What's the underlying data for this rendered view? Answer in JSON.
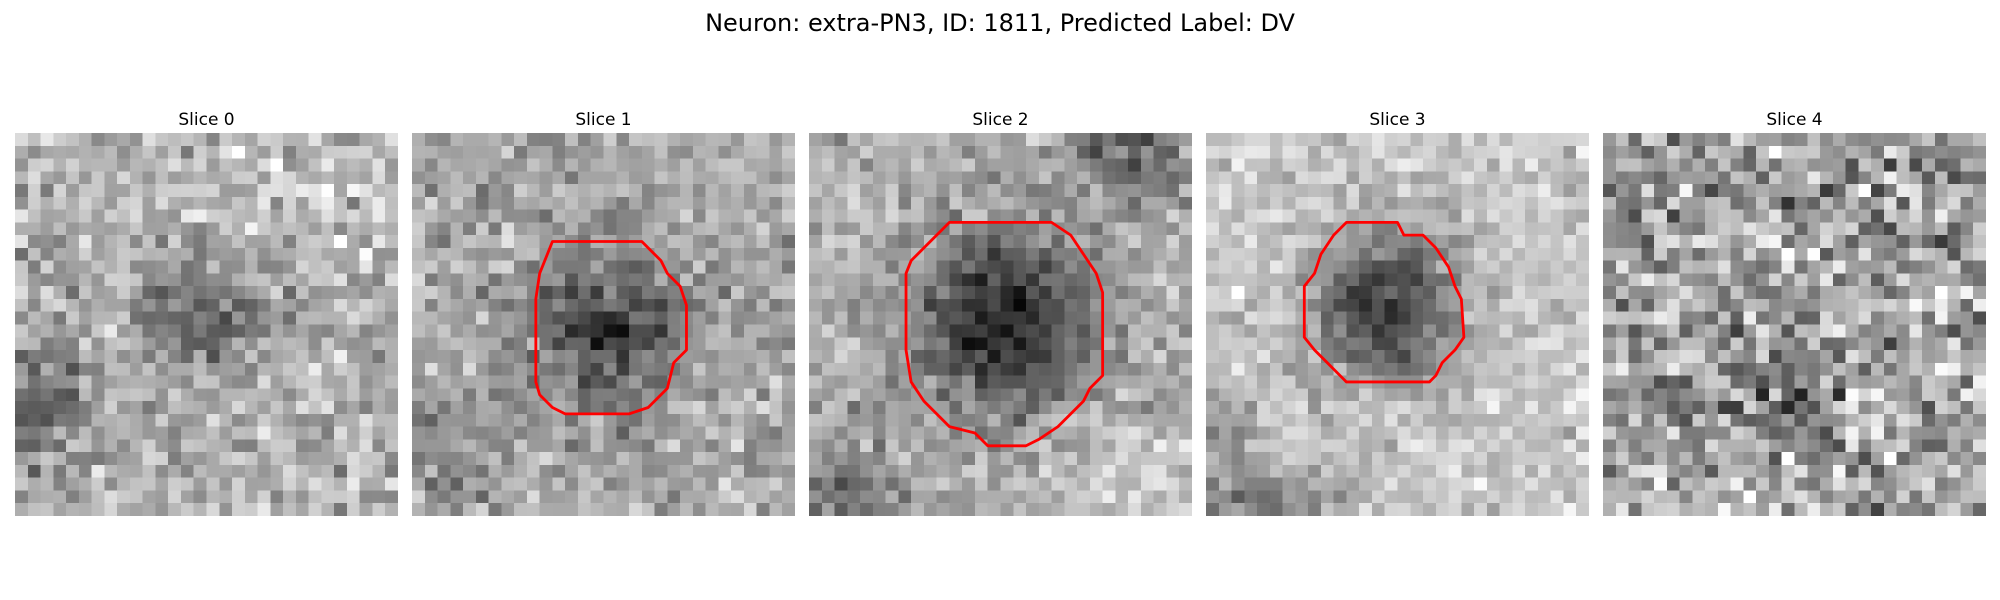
{
  "figure": {
    "title": "Neuron: extra-PN3, ID: 1811, Predicted Label: DV",
    "contour_color": "#ff0000",
    "colormap": "gray"
  },
  "panels": [
    {
      "title": "Slice 0",
      "has_contour": false
    },
    {
      "title": "Slice 1",
      "has_contour": true
    },
    {
      "title": "Slice 2",
      "has_contour": true
    },
    {
      "title": "Slice 3",
      "has_contour": true
    },
    {
      "title": "Slice 4",
      "has_contour": false
    }
  ]
}
